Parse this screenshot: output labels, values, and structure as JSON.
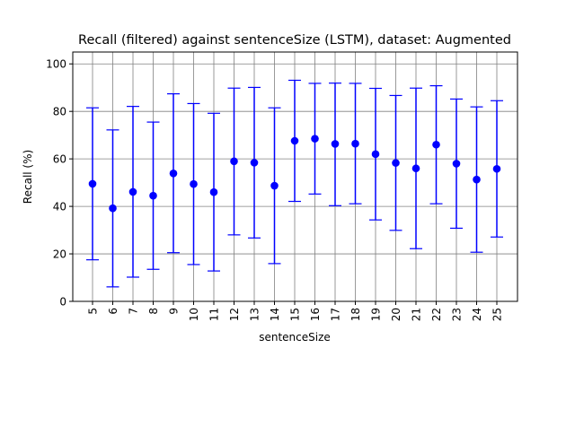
{
  "chart_data": {
    "type": "scatter",
    "title": "Recall (filtered) against sentenceSize (LSTM), dataset: Augmented",
    "xlabel": "sentenceSize",
    "ylabel": "Recall (%)",
    "ylim": [
      0,
      105
    ],
    "yticks": [
      0,
      20,
      40,
      60,
      80,
      100
    ],
    "categories": [
      "5",
      "6",
      "7",
      "8",
      "9",
      "10",
      "11",
      "12",
      "13",
      "14",
      "15",
      "16",
      "17",
      "18",
      "19",
      "20",
      "21",
      "22",
      "23",
      "24",
      "25"
    ],
    "grid": true,
    "marker_color": "#0000ff",
    "grid_color": "#808080",
    "series": [
      {
        "values": [
          49.5,
          39.2,
          46.1,
          44.5,
          53.9,
          49.4,
          46.0,
          59.0,
          58.4,
          48.7,
          67.6,
          68.5,
          66.3,
          66.4,
          62.0,
          58.3,
          56.0,
          66.0,
          58.0,
          51.3,
          55.8
        ],
        "lower": [
          17.5,
          6.1,
          10.2,
          13.5,
          20.5,
          15.5,
          12.8,
          28.0,
          26.7,
          15.9,
          42.1,
          45.2,
          40.3,
          41.1,
          34.3,
          29.9,
          22.2,
          41.1,
          30.8,
          20.7,
          27.1
        ],
        "upper": [
          81.5,
          72.2,
          82.1,
          75.5,
          87.4,
          83.3,
          79.2,
          89.8,
          90.1,
          81.5,
          93.1,
          91.8,
          91.9,
          91.8,
          89.7,
          86.7,
          89.8,
          90.8,
          85.2,
          81.9,
          84.5
        ]
      }
    ]
  }
}
